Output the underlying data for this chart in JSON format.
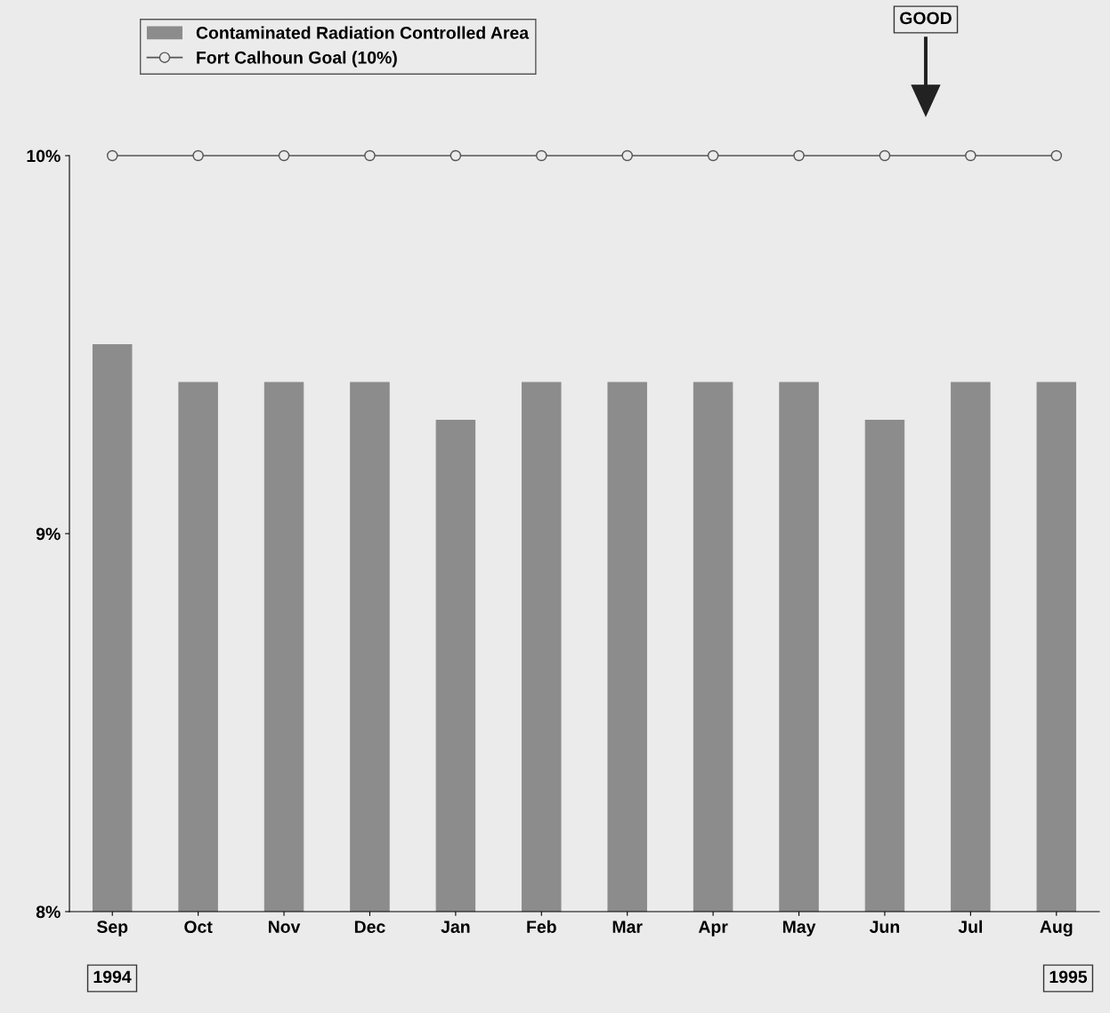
{
  "chart_data": {
    "type": "bar",
    "categories": [
      "Sep",
      "Oct",
      "Nov",
      "Dec",
      "Jan",
      "Feb",
      "Mar",
      "Apr",
      "May",
      "Jun",
      "Jul",
      "Aug"
    ],
    "series": [
      {
        "name": "Contaminated Radiation Controlled Area",
        "color": "#8c8c8c",
        "values": [
          9.5,
          9.4,
          9.4,
          9.4,
          9.3,
          9.4,
          9.4,
          9.4,
          9.4,
          9.3,
          9.4,
          9.4
        ]
      },
      {
        "name": "Fort Calhoun Goal (10%)",
        "type": "line",
        "color": "#555555",
        "values": [
          10,
          10,
          10,
          10,
          10,
          10,
          10,
          10,
          10,
          10,
          10,
          10
        ]
      }
    ],
    "ylim": [
      8,
      10
    ],
    "yticks": [
      {
        "value": 8,
        "label": "8%"
      },
      {
        "value": 9,
        "label": "9%"
      },
      {
        "value": 10,
        "label": "10%"
      }
    ],
    "marker": "circle",
    "grid": false,
    "legend": "top left",
    "annotations": [
      "GOOD",
      "1994",
      "1995"
    ]
  }
}
